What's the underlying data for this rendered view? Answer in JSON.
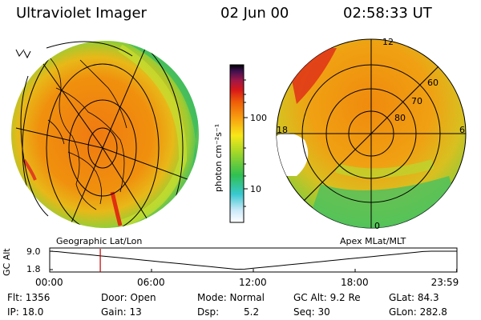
{
  "header": {
    "title": "Ultraviolet Imager",
    "date": "02 Jun 00",
    "time": "02:58:33 UT"
  },
  "colorbar": {
    "unit_label": "photon cm⁻²s⁻¹",
    "ticks": [
      "100",
      "10"
    ],
    "scale": "log"
  },
  "right_panel": {
    "mlt_labels": {
      "top": "12",
      "left": "18",
      "right": "6",
      "bottom": "0"
    },
    "lat_labels": [
      "60",
      "70",
      "80"
    ]
  },
  "projection_labels": {
    "left": "Geographic Lat/Lon",
    "right": "Apex MLat/MLT"
  },
  "timeline": {
    "ylabel": "GC Alt",
    "y_ticks": [
      "9.0",
      "1.8"
    ],
    "x_ticks": [
      "00:00",
      "06:00",
      "12:00",
      "18:00",
      "23:59"
    ],
    "current_time_hours": 2.98,
    "marker_color": "#c00000"
  },
  "info": {
    "flt": "Flt: 1356",
    "ip": "IP: 18.0",
    "door": "Door: Open",
    "gain": "Gain: 13",
    "mode": "Mode: Normal",
    "dsp_label": "Dsp:",
    "dsp_value": "5.2",
    "gc_alt": "GC Alt: 9.2 Re",
    "seq": "Seq: 30",
    "glat": "GLat: 84.3",
    "glon": "GLon: 282.8"
  }
}
